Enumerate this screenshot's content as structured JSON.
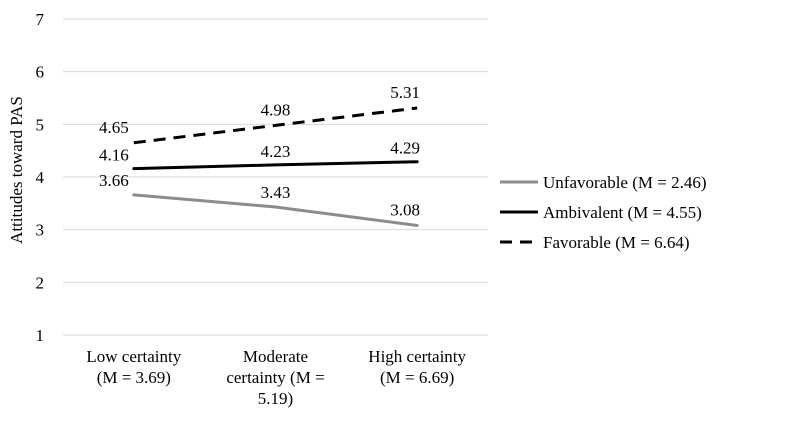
{
  "chart_data": {
    "type": "line",
    "title": "",
    "ylabel": "Attitudes toward PAS",
    "xlabel": "",
    "ylim": [
      1,
      7
    ],
    "yticks": [
      "1",
      "2",
      "3",
      "4",
      "5",
      "6",
      "7"
    ],
    "grid": true,
    "legend_position": "right",
    "categories": [
      [
        "Low certainty",
        "(M = 3.69)"
      ],
      [
        "Moderate",
        "certainty (M =",
        "5.19)"
      ],
      [
        "High certainty",
        "(M = 6.69)"
      ]
    ],
    "series": [
      {
        "name": "Unfavorable (M = 2.46)",
        "values": [
          3.66,
          3.43,
          3.08
        ],
        "labels": [
          "3.66",
          "3.43",
          "3.08"
        ],
        "color": "#8c8c8c",
        "dash": "solid"
      },
      {
        "name": "Ambivalent (M = 4.55)",
        "values": [
          4.16,
          4.23,
          4.29
        ],
        "labels": [
          "4.16",
          "4.23",
          "4.29"
        ],
        "color": "#000000",
        "dash": "solid"
      },
      {
        "name": "Favorable (M = 6.64)",
        "values": [
          4.65,
          4.98,
          5.31
        ],
        "labels": [
          "4.65",
          "4.98",
          "5.31"
        ],
        "color": "#000000",
        "dash": "dashed"
      }
    ],
    "gridline_color": "#d9d9d9"
  }
}
